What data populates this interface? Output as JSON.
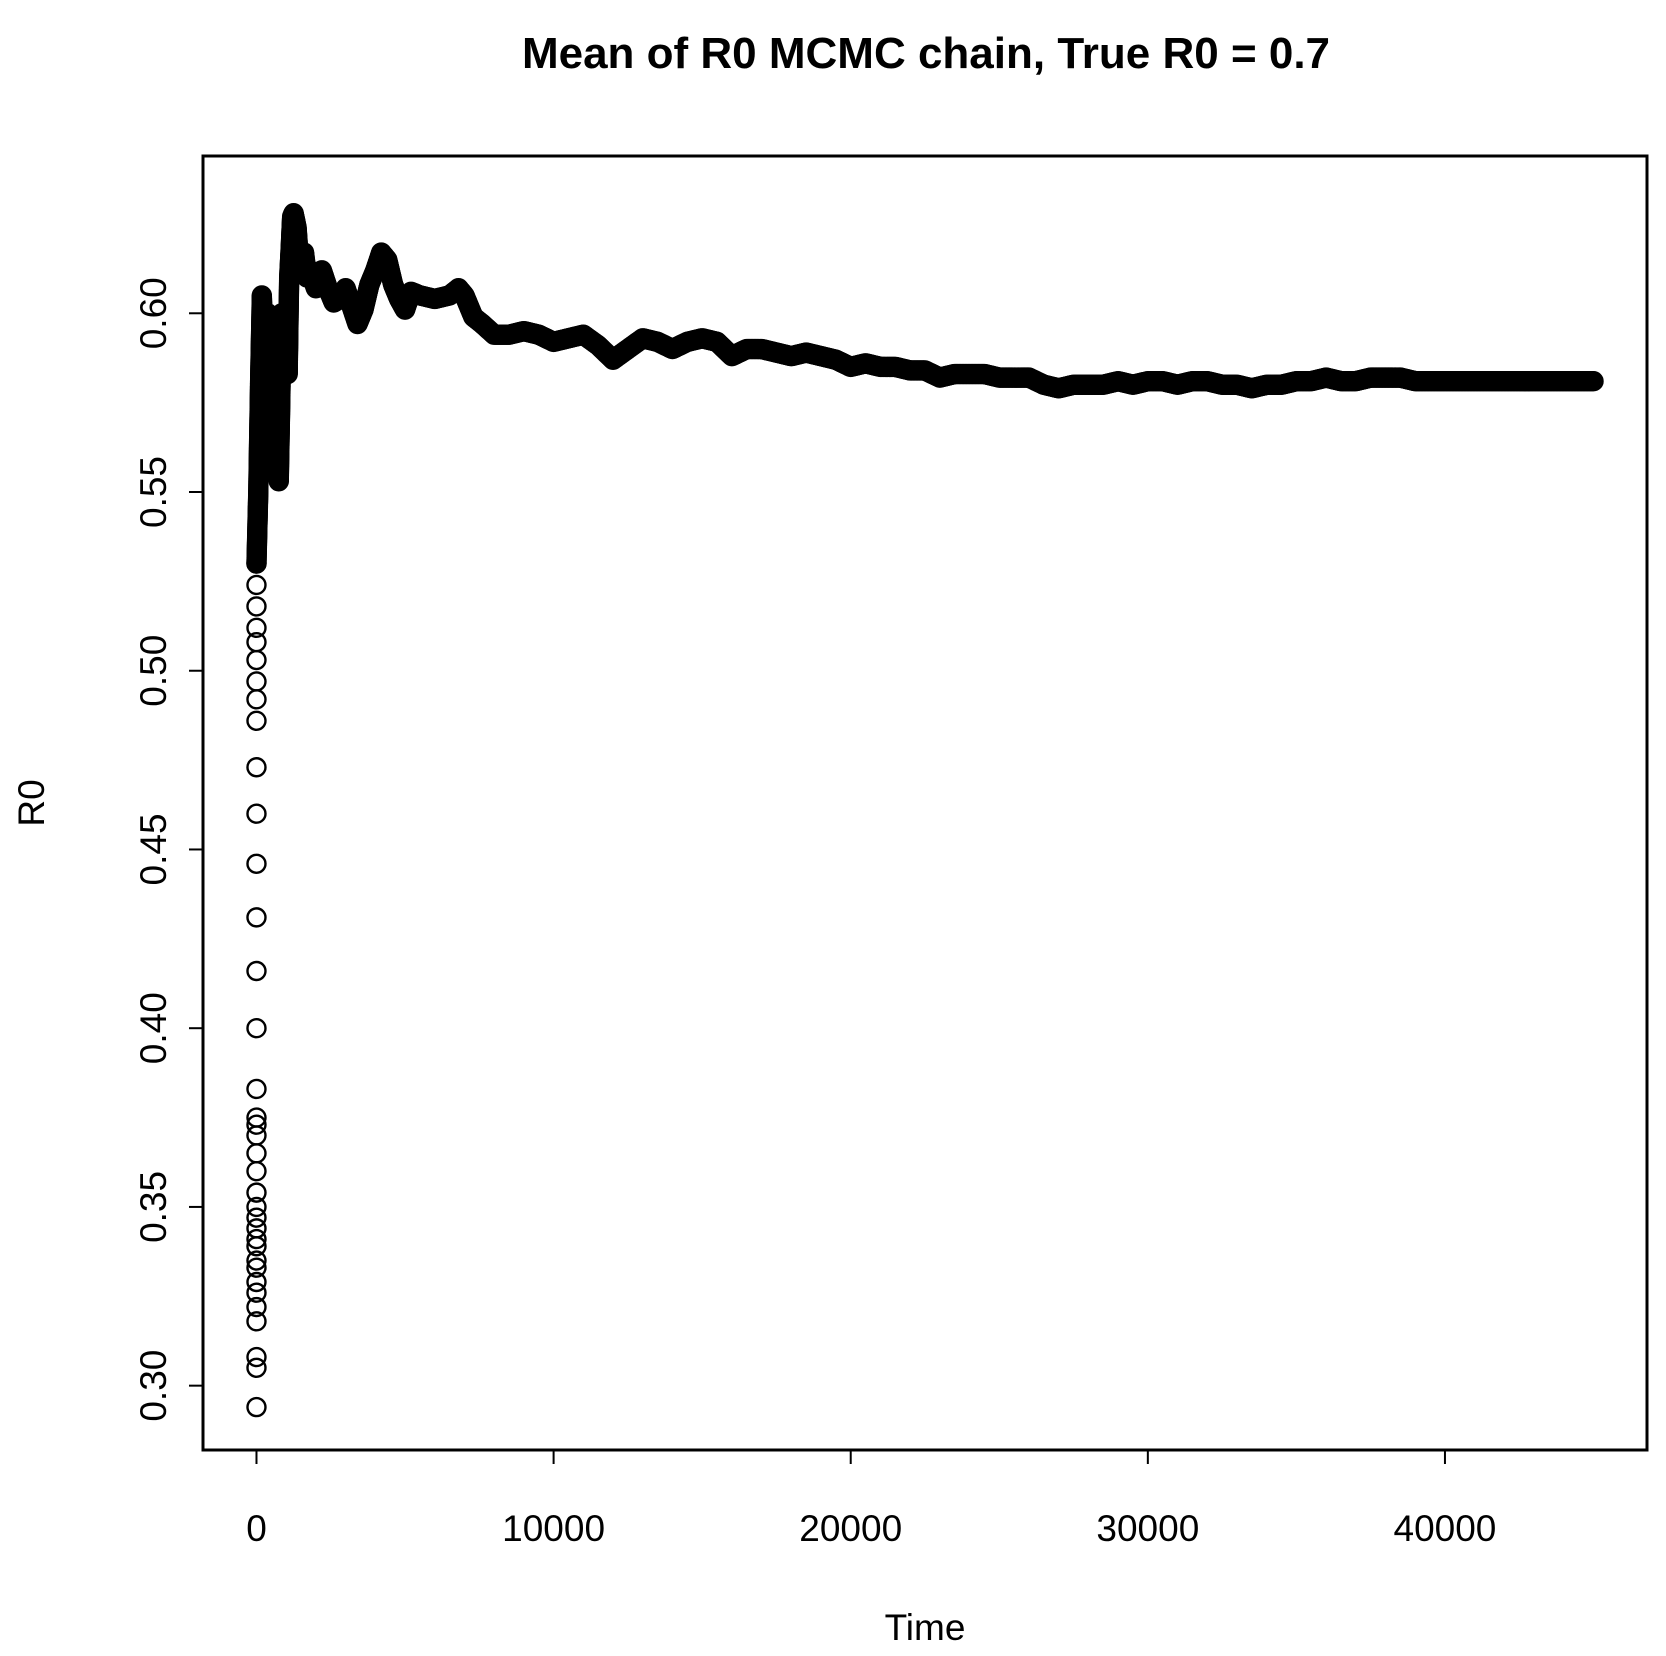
{
  "chart_data": {
    "type": "scatter",
    "title": "Mean of R0 MCMC chain, True R0 =  0.7",
    "xlabel": "Time",
    "ylabel": "R0",
    "xlim": [
      -1800,
      46800
    ],
    "ylim": [
      0.282,
      0.644
    ],
    "x_ticks": [
      0,
      10000,
      20000,
      30000,
      40000
    ],
    "x_tick_labels": [
      "0",
      "10000",
      "20000",
      "30000",
      "40000"
    ],
    "y_ticks": [
      0.3,
      0.35,
      0.4,
      0.45,
      0.5,
      0.55,
      0.6
    ],
    "y_tick_labels": [
      "0.30",
      "0.35",
      "0.40",
      "0.45",
      "0.50",
      "0.55",
      "0.60"
    ],
    "grid": false,
    "legend": "none",
    "marker": "open-circle",
    "series_color": "#000000",
    "early_scatter": {
      "x": [
        0,
        0,
        0,
        0,
        0,
        0,
        0,
        0,
        0,
        0,
        0,
        0,
        0,
        0,
        0,
        0,
        0,
        0,
        0,
        0,
        0,
        0,
        0,
        0,
        0,
        0,
        0,
        0,
        0,
        0,
        0,
        0,
        0,
        0,
        0,
        0
      ],
      "y": [
        0.294,
        0.305,
        0.308,
        0.318,
        0.322,
        0.326,
        0.329,
        0.333,
        0.335,
        0.339,
        0.341,
        0.344,
        0.347,
        0.35,
        0.354,
        0.36,
        0.365,
        0.37,
        0.373,
        0.375,
        0.383,
        0.4,
        0.416,
        0.431,
        0.446,
        0.46,
        0.473,
        0.486,
        0.492,
        0.497,
        0.503,
        0.508,
        0.512,
        0.518,
        0.524,
        0.53
      ]
    },
    "series": [
      {
        "x": [
          0,
          60,
          120,
          180,
          220,
          260,
          300,
          340,
          380,
          420,
          460,
          500,
          550,
          600,
          650,
          700,
          750,
          800,
          850,
          900,
          950,
          1000,
          1050,
          1100,
          1150,
          1200,
          1250,
          1300,
          1350,
          1400,
          1500,
          1600,
          1700,
          1800,
          2000,
          2200,
          2400,
          2600,
          2800,
          3000,
          3200,
          3400,
          3600,
          3800,
          4000,
          4200,
          4400,
          4600,
          4800,
          5000,
          5200,
          5500,
          6000,
          6500,
          6800,
          7000,
          7300,
          7600,
          8000,
          8500,
          9000,
          9500,
          10000,
          10500,
          11000,
          11500,
          12000,
          12500,
          13000,
          13500,
          14000,
          14500,
          15000,
          15500,
          16000,
          16500,
          17000,
          17500,
          18000,
          18500,
          19000,
          19500,
          20000,
          20500,
          21000,
          21500,
          22000,
          22500,
          23000,
          23500,
          24000,
          24500,
          25000,
          25500,
          26000,
          26500,
          27000,
          27500,
          28000,
          28500,
          29000,
          29500,
          30000,
          30500,
          31000,
          31500,
          32000,
          32500,
          33000,
          33500,
          34000,
          34500,
          35000,
          35500,
          36000,
          36500,
          37000,
          37500,
          38000,
          38500,
          39000,
          39500,
          40000,
          40500,
          41000,
          41500,
          42000,
          42500,
          43000,
          43500,
          44000,
          44500,
          45000
        ],
        "y": [
          0.53,
          0.55,
          0.58,
          0.605,
          0.595,
          0.575,
          0.59,
          0.578,
          0.6,
          0.585,
          0.56,
          0.57,
          0.585,
          0.596,
          0.598,
          0.57,
          0.553,
          0.575,
          0.6,
          0.59,
          0.595,
          0.6,
          0.583,
          0.61,
          0.618,
          0.627,
          0.628,
          0.626,
          0.624,
          0.618,
          0.615,
          0.617,
          0.61,
          0.612,
          0.607,
          0.612,
          0.607,
          0.603,
          0.604,
          0.607,
          0.602,
          0.597,
          0.601,
          0.608,
          0.612,
          0.617,
          0.615,
          0.608,
          0.604,
          0.601,
          0.606,
          0.605,
          0.604,
          0.605,
          0.607,
          0.605,
          0.599,
          0.597,
          0.594,
          0.594,
          0.595,
          0.594,
          0.592,
          0.593,
          0.594,
          0.591,
          0.587,
          0.59,
          0.593,
          0.592,
          0.59,
          0.592,
          0.593,
          0.592,
          0.588,
          0.59,
          0.59,
          0.589,
          0.588,
          0.589,
          0.588,
          0.587,
          0.585,
          0.586,
          0.585,
          0.585,
          0.584,
          0.584,
          0.582,
          0.583,
          0.583,
          0.583,
          0.582,
          0.582,
          0.582,
          0.58,
          0.579,
          0.58,
          0.58,
          0.58,
          0.581,
          0.58,
          0.581,
          0.581,
          0.58,
          0.581,
          0.581,
          0.58,
          0.58,
          0.579,
          0.58,
          0.58,
          0.581,
          0.581,
          0.582,
          0.581,
          0.581,
          0.582,
          0.582,
          0.582,
          0.581,
          0.581,
          0.581,
          0.581,
          0.581,
          0.581,
          0.581,
          0.581,
          0.581,
          0.581,
          0.581,
          0.581,
          0.581
        ]
      }
    ]
  }
}
